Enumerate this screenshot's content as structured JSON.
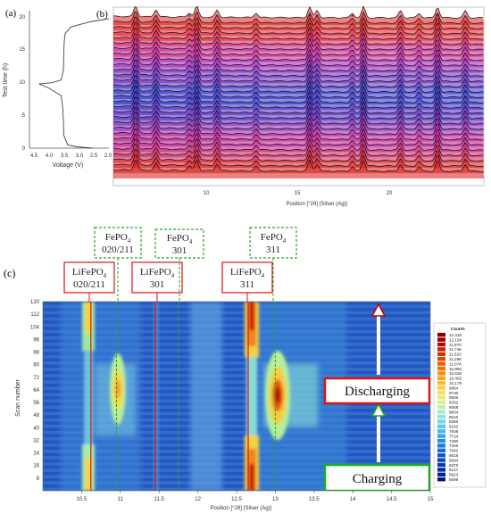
{
  "panel_a": {
    "label": "(a)",
    "ylabel": "Test time (h)",
    "xlabel": "Voltage (V)",
    "yticks": [
      "0",
      "5",
      "10",
      "15",
      "20"
    ],
    "xticks": [
      "4.5",
      "4.0",
      "3.5",
      "3.0",
      "2.5",
      "2.0"
    ]
  },
  "panel_b": {
    "label": "(b)",
    "xlabel": "Position [°2θ] (Silver (Ag))",
    "xticks": [
      "10",
      "15",
      "20"
    ]
  },
  "panel_c": {
    "label": "(c)",
    "ylabel": "Scan number",
    "xlabel": "Position [°2θ] (Silver (Ag))",
    "xticks": [
      "10.5",
      "11",
      "11.5",
      "12",
      "12.5",
      "13",
      "13.5",
      "14",
      "14.5",
      "15"
    ],
    "yticks": [
      "8",
      "16",
      "24",
      "32",
      "40",
      "48",
      "56",
      "64",
      "72",
      "80",
      "88",
      "96",
      "104",
      "112",
      "120"
    ],
    "colorbar_title": "Counts",
    "colorbar_labels": [
      "12,418",
      "12,194",
      "11,970",
      "11,746",
      "11,522",
      "11,298",
      "11,074",
      "10,850",
      "10,626",
      "10,402",
      "10,178",
      "9954",
      "9730",
      "9506",
      "9282",
      "9058",
      "8834",
      "8610",
      "8386",
      "8162",
      "7938",
      "7714",
      "7490",
      "7266",
      "7042",
      "6818",
      "6594",
      "6370",
      "6147",
      "5923",
      "5699"
    ],
    "colorbar_colors": [
      "#8b0000",
      "#a00000",
      "#b80a00",
      "#c81e00",
      "#d83200",
      "#e44600",
      "#ef5c00",
      "#f77200",
      "#fb8a0a",
      "#fda21e",
      "#fdb832",
      "#fccc48",
      "#f5dc62",
      "#eae87e",
      "#d8ef98",
      "#c2f0b0",
      "#a8ecc4",
      "#8ee4d4",
      "#74d8e0",
      "#5ccae8",
      "#46b8ec",
      "#34a4ec",
      "#2690e8",
      "#1c7ce2",
      "#1468da",
      "#0e56d0",
      "#0a46c4",
      "#0838b6",
      "#062ca6",
      "#042094",
      "#021680"
    ],
    "labels": {
      "lfp_020": {
        "line1": "LiFePO",
        "sub": "4",
        "line2": "020/211"
      },
      "fp_020": {
        "line1": "FePO",
        "sub": "4",
        "line2": "020/211"
      },
      "lfp_301": {
        "line1": "LiFePO",
        "sub": "4",
        "line2": "301"
      },
      "fp_301": {
        "line1": "FePO",
        "sub": "4",
        "line2": "301"
      },
      "lfp_311": {
        "line1": "LiFePO",
        "sub": "4",
        "line2": "311"
      },
      "fp_311": {
        "line1": "FePO",
        "sub": "4",
        "line2": "311"
      }
    },
    "discharging": "Discharging",
    "charging": "Charging"
  },
  "chart_data": [
    {
      "type": "line",
      "panel": "(a)",
      "xlabel": "Voltage (V)",
      "ylabel": "Test time (h)",
      "xlim": [
        4.5,
        2.0
      ],
      "ylim": [
        0,
        21
      ],
      "x_reversed": true,
      "series": [
        {
          "x": [
            2.5,
            3.0,
            3.3,
            3.42,
            3.43,
            3.45,
            3.5,
            3.9,
            4.2,
            3.8,
            3.5,
            3.43,
            3.42,
            3.41,
            3.38,
            3.2,
            2.6,
            2.1,
            2.0
          ],
          "y": [
            0.0,
            0.2,
            0.5,
            2.0,
            4.0,
            6.0,
            8.0,
            9.2,
            9.8,
            10.0,
            10.4,
            12.0,
            14.0,
            16.0,
            17.5,
            18.5,
            19.3,
            19.7,
            19.8
          ]
        }
      ]
    },
    {
      "type": "line",
      "panel": "(b)",
      "xlabel": "Position [°2θ] (Silver (Ag))",
      "xlim": [
        5,
        25
      ],
      "peaks_2theta": [
        6.2,
        7.3,
        9.1,
        9.5,
        10.6,
        12.7,
        15.6,
        16.0,
        17.9,
        18.5,
        20.5,
        21.5,
        22.5,
        24.0
      ],
      "starred_peaks_2theta": [
        9.1,
        15.6,
        16.0,
        17.9,
        22.5
      ],
      "scan_count": 30
    },
    {
      "type": "heatmap",
      "panel": "(c)",
      "xlabel": "Position [°2θ] (Silver (Ag))",
      "ylabel": "Scan number",
      "xlim": [
        10.0,
        15.0
      ],
      "ylim": [
        0,
        120
      ],
      "color_range": [
        5699,
        12418
      ],
      "reference_lines": [
        {
          "name": "LiFePO4 020/211",
          "x": 10.62,
          "style": "solid"
        },
        {
          "name": "FePO4 020/211",
          "x": 10.95,
          "style": "dashed"
        },
        {
          "name": "LiFePO4 301",
          "x": 11.45,
          "style": "solid"
        },
        {
          "name": "FePO4 301",
          "x": 11.75,
          "style": "dashed"
        },
        {
          "name": "LiFePO4 311",
          "x": 12.65,
          "style": "solid"
        },
        {
          "name": "FePO4 311",
          "x": 13.0,
          "style": "dashed"
        }
      ]
    }
  ]
}
